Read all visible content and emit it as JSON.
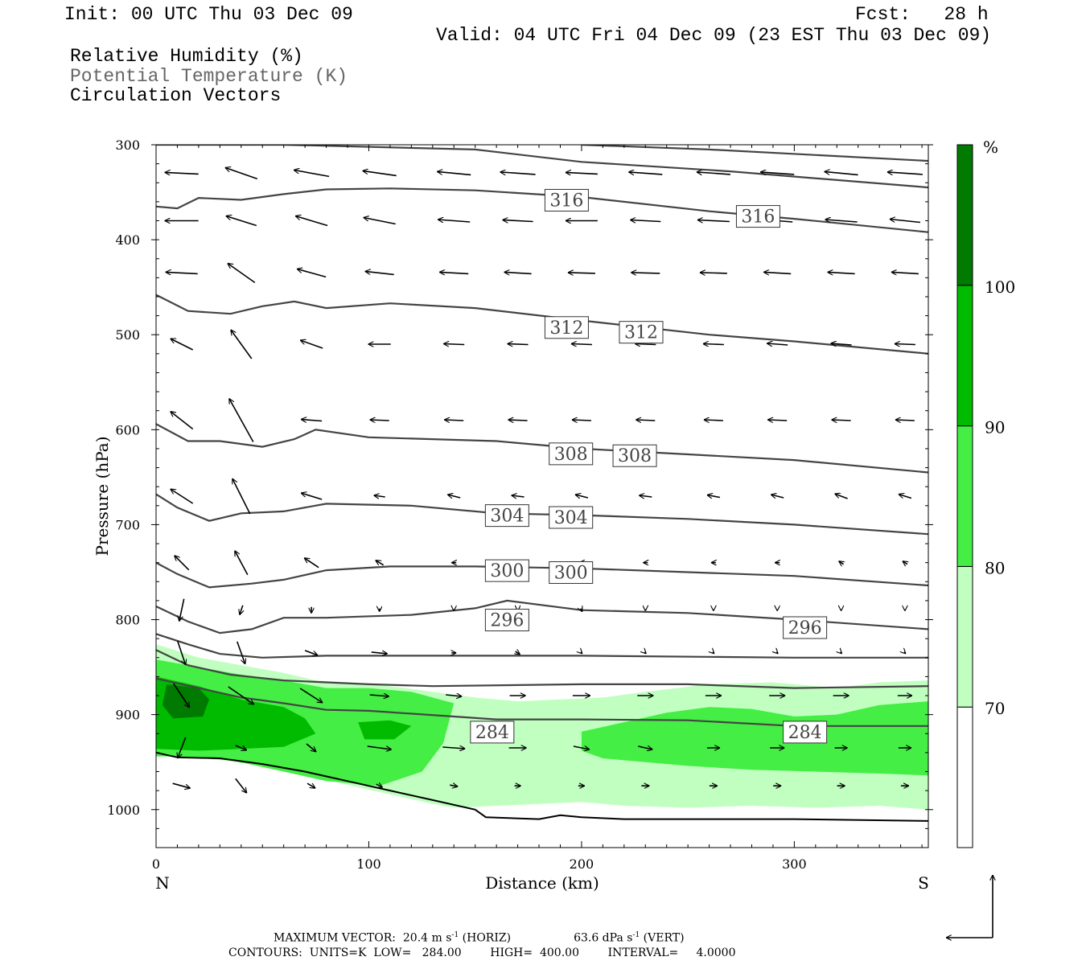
{
  "header": {
    "init": "Init: 00 UTC Thu 03 Dec 09",
    "fcst": "Fcst:   28 h",
    "valid": "Valid: 04 UTC Fri 04 Dec 09 (23 EST Thu 03 Dec 09)",
    "fields": [
      "Relative Humidity (%)",
      "Potential Temperature (K)",
      "Circulation Vectors"
    ]
  },
  "footer": {
    "max_vector": "MAXIMUM VECTOR:  20.4 m s",
    "horiz_unit_exp": "-1",
    "horiz_label": " (HORIZ)",
    "vert_value": "63.6 dPa s",
    "vert_unit_exp": "-1",
    "vert_label": " (VERT)",
    "contours": "CONTOURS:  UNITS=K  LOW=   284.00        HIGH=  400.00        INTERVAL=     4.0000"
  },
  "chart_data": {
    "type": "cross-section",
    "ylabel": "Pressure (hPa)",
    "xlabel": "Distance (km)",
    "x_left_label": "N",
    "x_right_label": "S",
    "xlim": [
      0,
      363
    ],
    "ylim": [
      1040,
      300
    ],
    "x_ticks": [
      0,
      100,
      200,
      300
    ],
    "y_ticks": [
      300,
      400,
      500,
      600,
      700,
      800,
      900,
      1000
    ],
    "colorbar": {
      "unit": "%",
      "levels": [
        70,
        80,
        90,
        100
      ],
      "colors": [
        "#ffffff",
        "#c0ffc0",
        "#44ee44",
        "#00bb00",
        "#007a00"
      ]
    },
    "isentropes": [
      {
        "theta": 284,
        "labels": [
          {
            "x": 158,
            "p": 918
          },
          {
            "x": 305,
            "p": 918
          }
        ],
        "points": [
          [
            0,
            862
          ],
          [
            20,
            872
          ],
          [
            40,
            882
          ],
          [
            60,
            888
          ],
          [
            80,
            895
          ],
          [
            100,
            896
          ],
          [
            140,
            902
          ],
          [
            160,
            905
          ],
          [
            200,
            905
          ],
          [
            250,
            906
          ],
          [
            300,
            912
          ],
          [
            363,
            912
          ]
        ]
      },
      {
        "theta": 288,
        "points": [
          [
            0,
            832
          ],
          [
            15,
            848
          ],
          [
            35,
            858
          ],
          [
            60,
            864
          ],
          [
            80,
            866
          ],
          [
            100,
            868
          ],
          [
            130,
            870
          ],
          [
            200,
            868
          ],
          [
            250,
            868
          ],
          [
            300,
            872
          ],
          [
            363,
            870
          ]
        ]
      },
      {
        "theta": 292,
        "points": [
          [
            0,
            815
          ],
          [
            15,
            826
          ],
          [
            30,
            836
          ],
          [
            50,
            840
          ],
          [
            80,
            838
          ],
          [
            150,
            838
          ],
          [
            200,
            838
          ],
          [
            300,
            840
          ],
          [
            363,
            840
          ]
        ]
      },
      {
        "theta": 296,
        "labels": [
          {
            "x": 165,
            "p": 800
          },
          {
            "x": 305,
            "p": 808
          }
        ],
        "points": [
          [
            0,
            786
          ],
          [
            15,
            802
          ],
          [
            30,
            814
          ],
          [
            45,
            810
          ],
          [
            60,
            798
          ],
          [
            80,
            798
          ],
          [
            120,
            795
          ],
          [
            150,
            788
          ],
          [
            165,
            780
          ],
          [
            200,
            790
          ],
          [
            250,
            793
          ],
          [
            300,
            800
          ],
          [
            363,
            810
          ]
        ]
      },
      {
        "theta": 300,
        "labels": [
          {
            "x": 165,
            "p": 748
          },
          {
            "x": 195,
            "p": 750
          }
        ],
        "points": [
          [
            0,
            740
          ],
          [
            10,
            752
          ],
          [
            25,
            766
          ],
          [
            45,
            762
          ],
          [
            60,
            758
          ],
          [
            80,
            748
          ],
          [
            110,
            744
          ],
          [
            150,
            744
          ],
          [
            200,
            746
          ],
          [
            250,
            750
          ],
          [
            300,
            754
          ],
          [
            363,
            764
          ]
        ]
      },
      {
        "theta": 304,
        "labels": [
          {
            "x": 165,
            "p": 690
          },
          {
            "x": 195,
            "p": 692
          }
        ],
        "points": [
          [
            0,
            668
          ],
          [
            10,
            682
          ],
          [
            25,
            696
          ],
          [
            40,
            688
          ],
          [
            60,
            686
          ],
          [
            80,
            678
          ],
          [
            120,
            680
          ],
          [
            160,
            688
          ],
          [
            200,
            690
          ],
          [
            250,
            694
          ],
          [
            300,
            700
          ],
          [
            363,
            710
          ]
        ]
      },
      {
        "theta": 308,
        "labels": [
          {
            "x": 195,
            "p": 625
          },
          {
            "x": 225,
            "p": 627
          }
        ],
        "points": [
          [
            0,
            594
          ],
          [
            15,
            612
          ],
          [
            30,
            612
          ],
          [
            50,
            618
          ],
          [
            65,
            610
          ],
          [
            75,
            600
          ],
          [
            100,
            608
          ],
          [
            160,
            612
          ],
          [
            200,
            620
          ],
          [
            250,
            626
          ],
          [
            300,
            632
          ],
          [
            363,
            645
          ]
        ]
      },
      {
        "theta": 312,
        "labels": [
          {
            "x": 193,
            "p": 492
          },
          {
            "x": 228,
            "p": 497
          }
        ],
        "points": [
          [
            0,
            458
          ],
          [
            15,
            475
          ],
          [
            35,
            478
          ],
          [
            50,
            470
          ],
          [
            65,
            465
          ],
          [
            80,
            472
          ],
          [
            110,
            467
          ],
          [
            150,
            472
          ],
          [
            200,
            485
          ],
          [
            260,
            500
          ],
          [
            300,
            507
          ],
          [
            363,
            520
          ]
        ]
      },
      {
        "theta": 316,
        "labels": [
          {
            "x": 193,
            "p": 358
          },
          {
            "x": 283,
            "p": 375
          }
        ],
        "points": [
          [
            0,
            365
          ],
          [
            10,
            367
          ],
          [
            20,
            356
          ],
          [
            40,
            358
          ],
          [
            60,
            352
          ],
          [
            80,
            347
          ],
          [
            110,
            346
          ],
          [
            150,
            348
          ],
          [
            200,
            355
          ],
          [
            260,
            370
          ],
          [
            300,
            378
          ],
          [
            363,
            392
          ]
        ]
      },
      {
        "theta": 320,
        "points": [
          [
            0,
            300
          ],
          [
            60,
            300
          ],
          [
            150,
            305
          ],
          [
            200,
            318
          ],
          [
            270,
            328
          ],
          [
            363,
            345
          ]
        ]
      },
      {
        "theta": 324,
        "points": [
          [
            200,
            300
          ],
          [
            260,
            305
          ],
          [
            363,
            317
          ]
        ]
      }
    ],
    "terrain": [
      [
        0,
        940
      ],
      [
        10,
        945
      ],
      [
        30,
        946
      ],
      [
        50,
        952
      ],
      [
        70,
        960
      ],
      [
        90,
        970
      ],
      [
        110,
        980
      ],
      [
        130,
        990
      ],
      [
        150,
        1000
      ],
      [
        155,
        1008
      ],
      [
        180,
        1010
      ],
      [
        190,
        1006
      ],
      [
        200,
        1008
      ],
      [
        220,
        1010
      ],
      [
        260,
        1010
      ],
      [
        300,
        1010
      ],
      [
        363,
        1012
      ]
    ]
  }
}
